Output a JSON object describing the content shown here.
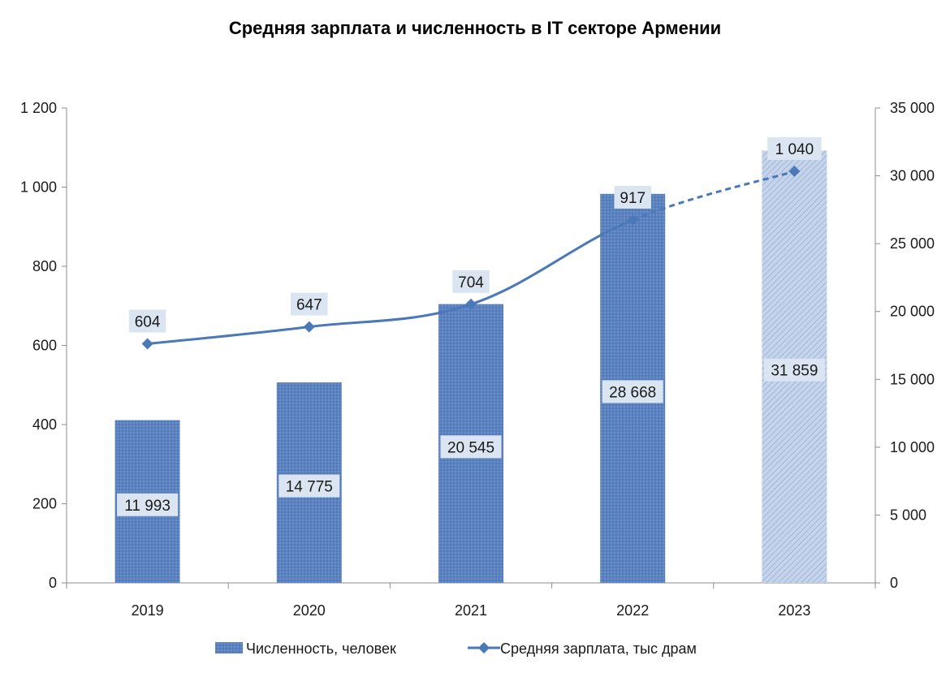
{
  "chart_data": {
    "type": "bar",
    "title": "Средняя зарплата и численность в IT секторе Армении",
    "categories": [
      "2019",
      "2020",
      "2021",
      "2022",
      "2023"
    ],
    "series": [
      {
        "name": "Численность, человек",
        "type": "bar",
        "axis": "right",
        "values": [
          11993,
          14775,
          20545,
          28668,
          31859
        ],
        "value_labels": [
          "11 993",
          "14 775",
          "20 545",
          "28 668",
          "31 859"
        ],
        "estimated_last": true
      },
      {
        "name": "Средняя зарплата, тыс драм",
        "type": "line",
        "axis": "left",
        "values": [
          604,
          647,
          704,
          917,
          1040
        ],
        "value_labels": [
          "604",
          "647",
          "704",
          "917",
          "1 040"
        ],
        "marker": "diamond",
        "dashed_last_segment": true
      }
    ],
    "y_left": {
      "min": 0,
      "max": 1200,
      "ticks": [
        0,
        200,
        400,
        600,
        800,
        1000,
        1200
      ],
      "tick_labels": [
        "0",
        "200",
        "400",
        "600",
        "800",
        "1 000",
        "1 200"
      ]
    },
    "y_right": {
      "min": 0,
      "max": 35000,
      "ticks": [
        0,
        5000,
        10000,
        15000,
        20000,
        25000,
        30000,
        35000
      ],
      "tick_labels": [
        "0",
        "5 000",
        "10 000",
        "15 000",
        "20 000",
        "25 000",
        "30 000",
        "35 000"
      ]
    },
    "grid": false,
    "legend_position": "bottom",
    "colors": {
      "bar": "#5b82c0",
      "bar_light": "#b7c9e6",
      "line": "#4a78b8",
      "label_bg": "#dbe5f1"
    }
  }
}
